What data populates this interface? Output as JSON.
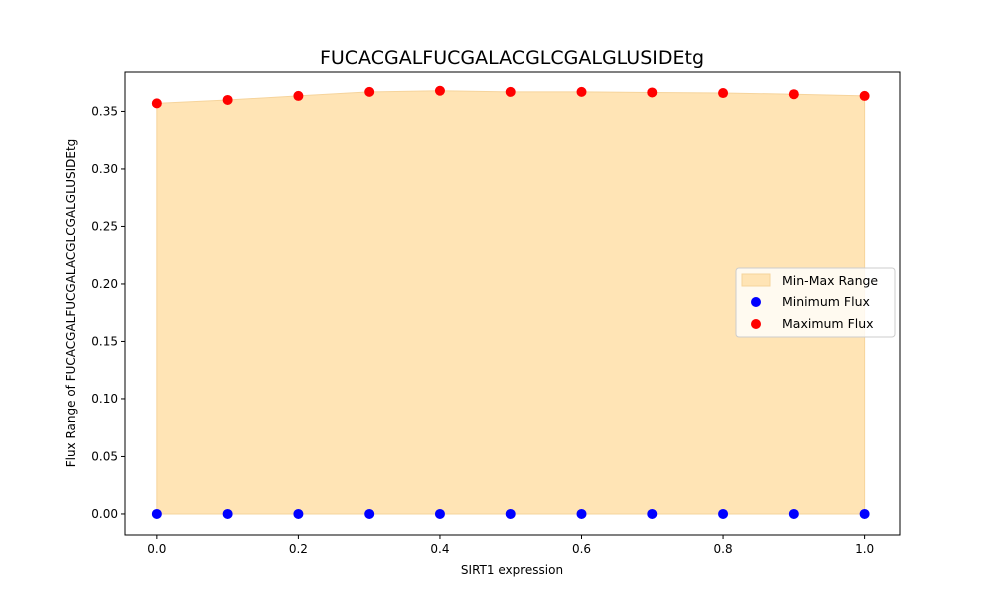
{
  "chart_data": {
    "type": "scatter",
    "title": "FUCACGALFUCGALACGLCGALGLUSIDEtg",
    "xlabel": "SIRT1 expression",
    "ylabel": "Flux Range of FUCACGALFUCGALACGLCGALGLUSIDEtg",
    "xlim": [
      -0.045,
      1.05
    ],
    "ylim": [
      -0.0183,
      0.3843
    ],
    "x_ticks": [
      0.0,
      0.2,
      0.4,
      0.6,
      0.8,
      1.0
    ],
    "x_tick_labels": [
      "0.0",
      "0.2",
      "0.4",
      "0.6",
      "0.8",
      "1.0"
    ],
    "y_ticks": [
      0.0,
      0.05,
      0.1,
      0.15,
      0.2,
      0.25,
      0.3,
      0.35
    ],
    "y_tick_labels": [
      "0.00",
      "0.05",
      "0.10",
      "0.15",
      "0.20",
      "0.25",
      "0.30",
      "0.35"
    ],
    "grid": false,
    "legend_position": "center-right",
    "x": [
      0.0,
      0.1,
      0.2,
      0.3,
      0.4,
      0.5,
      0.6,
      0.7,
      0.8,
      0.9,
      1.0
    ],
    "series": [
      {
        "name": "Min-Max Range",
        "kind": "fill",
        "color": "#ffe4b5",
        "edge_color": "#f6d49c"
      },
      {
        "name": "Minimum Flux",
        "kind": "scatter",
        "color": "#0000ff",
        "values": [
          0,
          0,
          0,
          0,
          0,
          0,
          0,
          0,
          0,
          0,
          0
        ]
      },
      {
        "name": "Maximum Flux",
        "kind": "scatter",
        "color": "#ff0000",
        "values": [
          0.357,
          0.36,
          0.3635,
          0.367,
          0.368,
          0.367,
          0.367,
          0.3665,
          0.366,
          0.365,
          0.3635
        ]
      }
    ]
  }
}
